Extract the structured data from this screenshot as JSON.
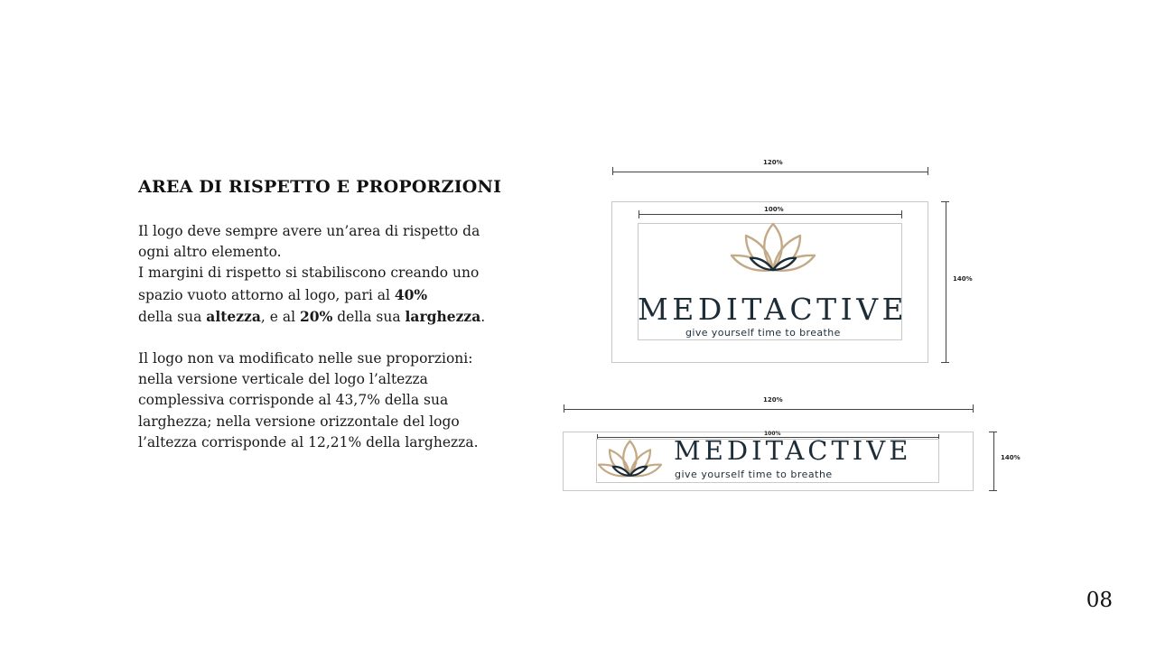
{
  "heading": "AREA DI RISPETTO E PROPORZIONI",
  "paragraph1": {
    "line1": "Il logo deve sempre avere un’area di rispetto da ogni altro elemento.",
    "line2_prefix": "I margini di rispetto si stabiliscono creando uno spazio vuoto attorno al logo, pari al ",
    "value_40": "40%",
    "line2_mid1": " della sua ",
    "word_altezza": "altezza",
    "line2_mid2": ", e al ",
    "value_20": "20%",
    "line2_mid3": " della sua ",
    "word_larghezza": "larghezza",
    "line2_end": "."
  },
  "paragraph2": "Il logo non va modificato nelle sue proporzioni: nella versione verticale del logo l’altezza complessiva corrisponde al 43,7% della sua larghezza; nella versione orizzontale del logo l’altezza corrisponde al 12,21% della larghezza.",
  "vertical_diagram": {
    "outer_width_label": "120%",
    "inner_width_label": "100%",
    "height_label": "140%"
  },
  "horizontal_diagram": {
    "outer_width_label": "120%",
    "inner_width_label": "100%",
    "height_label": "140%"
  },
  "logo": {
    "wordmark": "MEDITACTIVE",
    "tagline": "give yourself time to breathe",
    "petal_color": "#c4a987",
    "base_color": "#1d2d38"
  },
  "page_number": "08"
}
